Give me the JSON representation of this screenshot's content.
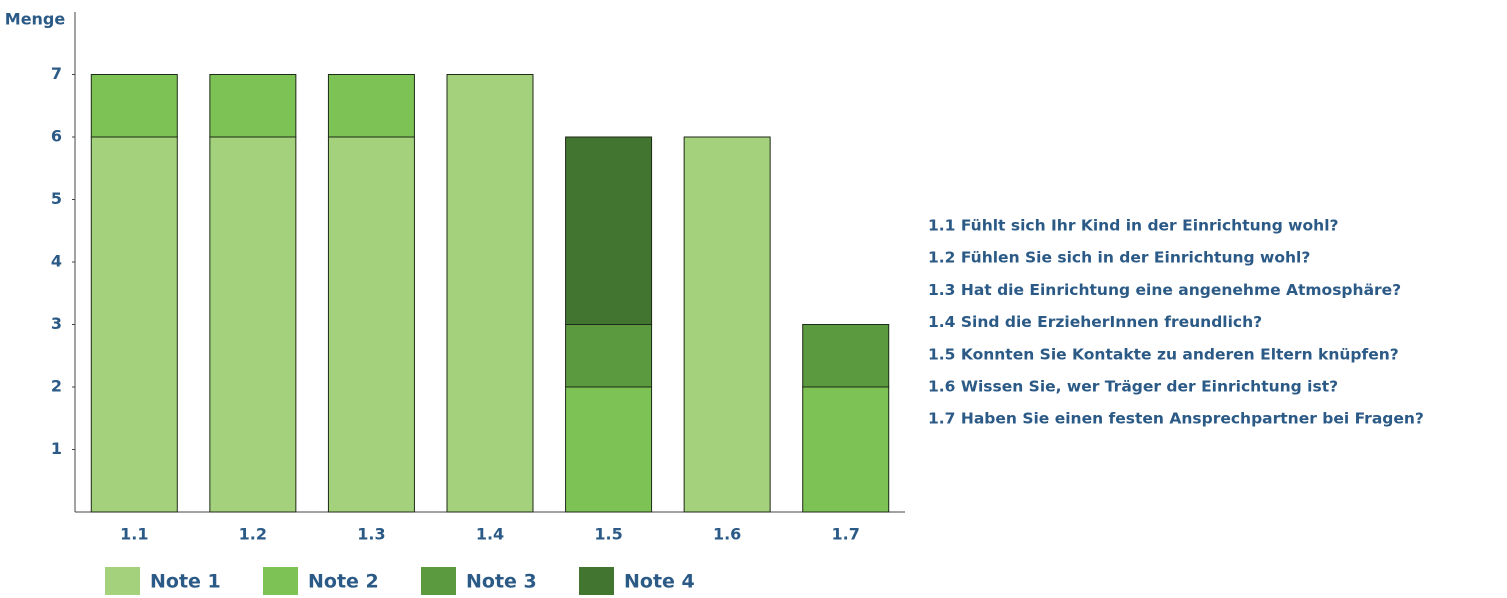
{
  "chart_data": {
    "type": "stacked_bar",
    "y_label": "Menge",
    "categories": [
      "1.1",
      "1.2",
      "1.3",
      "1.4",
      "1.5",
      "1.6",
      "1.7"
    ],
    "series": [
      {
        "name": "Note 1",
        "color": "#a4d17b",
        "values": [
          6,
          6,
          6,
          7,
          0,
          6,
          0
        ]
      },
      {
        "name": "Note 2",
        "color": "#7dc254",
        "values": [
          1,
          1,
          1,
          0,
          2,
          0,
          2
        ]
      },
      {
        "name": "Note 3",
        "color": "#5b9a3f",
        "values": [
          0,
          0,
          0,
          0,
          1,
          0,
          1
        ]
      },
      {
        "name": "Note 4",
        "color": "#42752f",
        "values": [
          0,
          0,
          0,
          0,
          3,
          0,
          0
        ]
      }
    ],
    "ylim": [
      0,
      8
    ],
    "yticks": [
      1,
      2,
      3,
      4,
      5,
      6,
      7
    ],
    "annotations": [
      "1.1  Fühlt sich Ihr Kind in der Einrichtung wohl?",
      "1.2  Fühlen Sie sich in der Einrichtung wohl?",
      "1.3  Hat die Einrichtung eine angenehme Atmosphäre?",
      "1.4  Sind die ErzieherInnen freundlich?",
      "1.5  Konnten Sie Kontakte zu anderen Eltern knüpfen?",
      "1.6  Wissen Sie, wer Träger der Einrichtung ist?",
      "1.7  Haben Sie einen festen Ansprechpartner bei Fragen?"
    ]
  }
}
